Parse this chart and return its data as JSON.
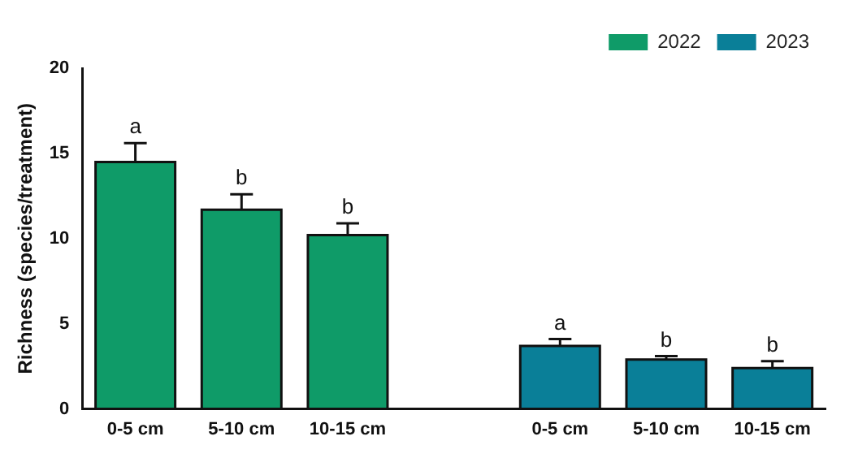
{
  "chart_data": {
    "type": "bar",
    "ylabel": "Richness (species/treatment)",
    "categories": [
      "0-5 cm",
      "5-10 cm",
      "10-15 cm",
      null,
      "0-5 cm",
      "5-10 cm",
      "10-15 cm"
    ],
    "series": [
      {
        "name": "2022",
        "color": "#0f9b68",
        "values": [
          14.5,
          11.7,
          10.2,
          null,
          null,
          null,
          null
        ],
        "errors": [
          [
            14.5,
            15.6
          ],
          [
            11.7,
            12.6
          ],
          [
            10.2,
            10.9
          ],
          null,
          null,
          null,
          null
        ],
        "value_labels": [
          "a",
          "b",
          "b",
          null,
          null,
          null,
          null
        ]
      },
      {
        "name": "2023",
        "color": "#0a7f98",
        "values": [
          null,
          null,
          null,
          null,
          3.7,
          2.9,
          2.4
        ],
        "errors": [
          null,
          null,
          null,
          null,
          [
            3.7,
            4.1
          ],
          [
            2.9,
            3.1
          ],
          [
            2.4,
            2.8
          ]
        ],
        "value_labels": [
          null,
          null,
          null,
          null,
          "a",
          "b",
          "b"
        ]
      }
    ],
    "ylim": [
      0,
      20
    ],
    "yticks": [
      0,
      5,
      10,
      15,
      20
    ],
    "grid": false,
    "legend": "top right"
  }
}
